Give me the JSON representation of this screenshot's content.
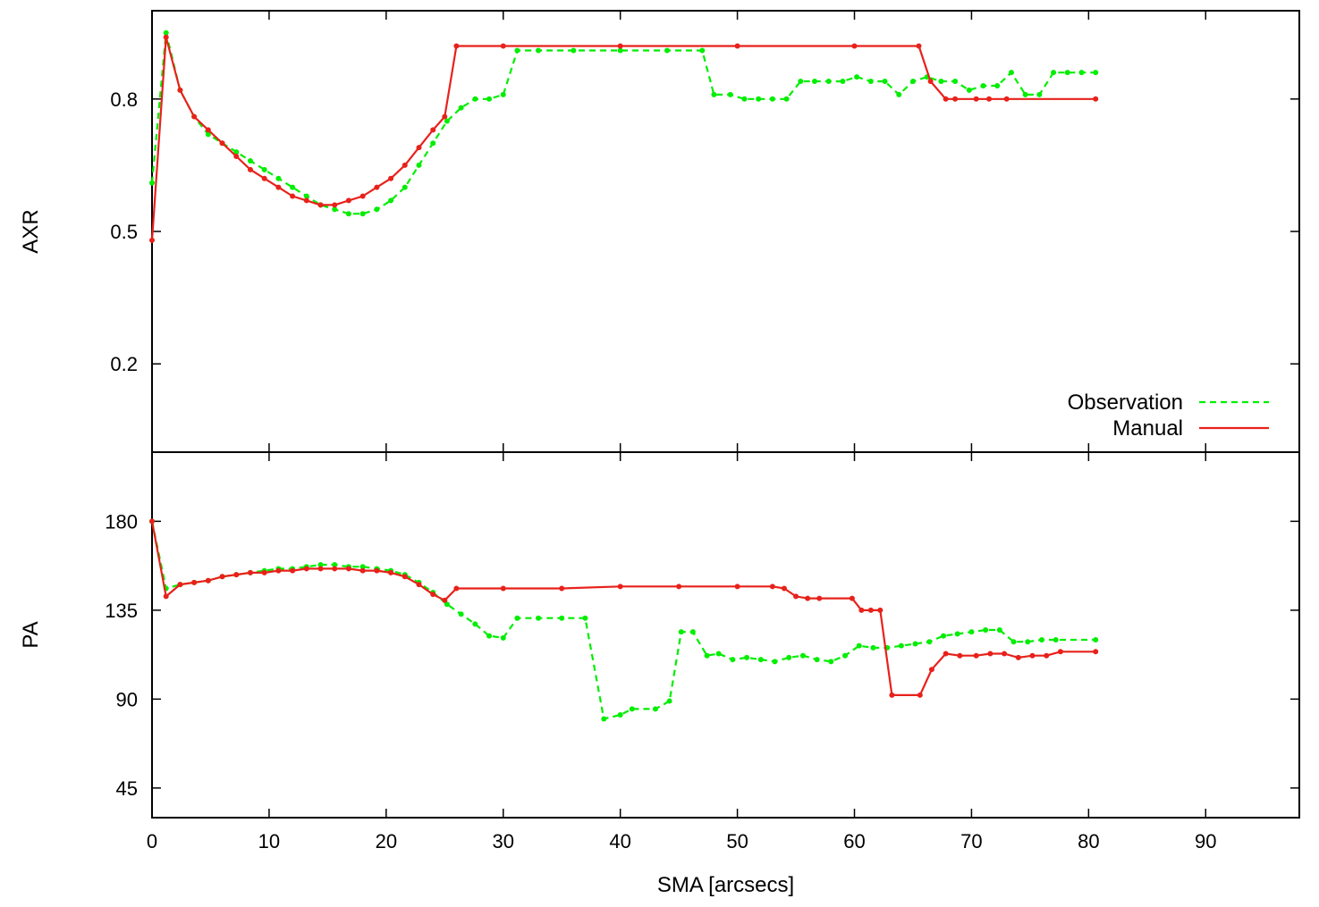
{
  "chart_data": [
    {
      "type": "line",
      "panel": "top",
      "ylabel": "AXR",
      "xlabel": "",
      "xlim": [
        0,
        98
      ],
      "ylim": [
        0,
        1.0
      ],
      "xticks": [
        0,
        10,
        20,
        30,
        40,
        50,
        60,
        70,
        80,
        90
      ],
      "yticks": [
        0.2,
        0.5,
        0.8
      ],
      "ytick_labels": [
        "0.2",
        "0.5",
        "0.8"
      ],
      "show_x_tick_labels": false,
      "legend": {
        "position": "bottom-right"
      },
      "series": [
        {
          "name": "Observation",
          "color": "#00ee00",
          "style": "dashed",
          "markers": true,
          "x": [
            0.0,
            1.2,
            2.4,
            3.6,
            4.8,
            6.0,
            7.2,
            8.4,
            9.6,
            10.8,
            12.0,
            13.2,
            14.4,
            15.6,
            16.8,
            18.0,
            19.2,
            20.4,
            21.6,
            22.8,
            24.0,
            25.2,
            26.4,
            27.6,
            28.8,
            30.0,
            31.2,
            33.0,
            36.0,
            40.0,
            44.0,
            47.0,
            48.0,
            49.4,
            50.6,
            51.8,
            53.0,
            54.2,
            55.4,
            56.6,
            57.8,
            59.0,
            60.2,
            61.4,
            62.6,
            63.8,
            65.0,
            66.2,
            67.4,
            68.6,
            69.8,
            71.0,
            72.2,
            73.4,
            74.6,
            75.8,
            77.0,
            78.2,
            79.4,
            80.6
          ],
          "y": [
            0.61,
            0.95,
            0.82,
            0.76,
            0.72,
            0.7,
            0.68,
            0.66,
            0.64,
            0.62,
            0.6,
            0.58,
            0.56,
            0.55,
            0.54,
            0.54,
            0.55,
            0.57,
            0.6,
            0.65,
            0.7,
            0.75,
            0.78,
            0.8,
            0.8,
            0.81,
            0.91,
            0.91,
            0.91,
            0.91,
            0.91,
            0.91,
            0.81,
            0.81,
            0.8,
            0.8,
            0.8,
            0.8,
            0.84,
            0.84,
            0.84,
            0.84,
            0.85,
            0.84,
            0.84,
            0.81,
            0.84,
            0.85,
            0.84,
            0.84,
            0.82,
            0.83,
            0.83,
            0.86,
            0.81,
            0.81,
            0.86,
            0.86,
            0.86,
            0.86
          ]
        },
        {
          "name": "Manual",
          "color": "#e8211b",
          "style": "solid",
          "markers": true,
          "x": [
            0.0,
            1.2,
            2.4,
            3.6,
            4.8,
            6.0,
            7.2,
            8.4,
            9.6,
            10.8,
            12.0,
            13.2,
            14.4,
            15.6,
            16.8,
            18.0,
            19.2,
            20.4,
            21.6,
            22.8,
            24.0,
            25.0,
            26.0,
            30.0,
            40.0,
            50.0,
            60.0,
            65.5,
            66.5,
            67.8,
            68.6,
            70.4,
            71.5,
            73.0,
            80.6
          ],
          "y": [
            0.48,
            0.94,
            0.82,
            0.76,
            0.73,
            0.7,
            0.67,
            0.64,
            0.62,
            0.6,
            0.58,
            0.57,
            0.56,
            0.56,
            0.57,
            0.58,
            0.6,
            0.62,
            0.65,
            0.69,
            0.73,
            0.76,
            0.92,
            0.92,
            0.92,
            0.92,
            0.92,
            0.92,
            0.84,
            0.8,
            0.8,
            0.8,
            0.8,
            0.8,
            0.8
          ]
        }
      ]
    },
    {
      "type": "line",
      "panel": "bottom",
      "ylabel": "PA",
      "xlabel": "SMA [arcsecs]",
      "xlim": [
        0,
        98
      ],
      "ylim": [
        30,
        215
      ],
      "xticks": [
        0,
        10,
        20,
        30,
        40,
        50,
        60,
        70,
        80,
        90
      ],
      "xtick_labels": [
        "0",
        "10",
        "20",
        "30",
        "40",
        "50",
        "60",
        "70",
        "80",
        "90"
      ],
      "yticks": [
        45,
        90,
        135,
        180
      ],
      "ytick_labels": [
        "45",
        "90",
        "135",
        "180"
      ],
      "series": [
        {
          "name": "Observation",
          "color": "#00ee00",
          "style": "dashed",
          "markers": true,
          "x": [
            0.0,
            1.2,
            2.4,
            3.6,
            4.8,
            6.0,
            7.2,
            8.4,
            9.6,
            10.8,
            12.0,
            13.2,
            14.4,
            15.6,
            16.8,
            18.0,
            19.2,
            20.4,
            21.6,
            22.8,
            24.0,
            25.2,
            26.4,
            27.6,
            28.8,
            30.0,
            31.2,
            33.0,
            35.0,
            37.0,
            38.6,
            40.0,
            41.0,
            43.0,
            44.2,
            45.2,
            46.2,
            47.4,
            48.4,
            49.6,
            50.8,
            52.0,
            53.2,
            54.4,
            55.6,
            56.8,
            58.0,
            59.2,
            60.4,
            61.6,
            62.8,
            64.0,
            65.2,
            66.4,
            67.6,
            68.8,
            70.0,
            71.2,
            72.4,
            73.6,
            74.8,
            76.0,
            77.2,
            80.6
          ],
          "y": [
            180,
            146,
            148,
            149,
            150,
            152,
            153,
            154,
            155,
            156,
            156,
            157,
            158,
            158,
            157,
            157,
            156,
            155,
            153,
            149,
            144,
            138,
            133,
            128,
            122,
            121,
            131,
            131,
            131,
            131,
            80,
            82,
            85,
            85,
            89,
            124,
            124,
            112,
            113,
            110,
            111,
            110,
            109,
            111,
            112,
            110,
            109,
            112,
            117,
            116,
            116,
            117,
            118,
            119,
            122,
            123,
            124,
            125,
            125,
            119,
            119,
            120,
            120,
            120
          ]
        },
        {
          "name": "Manual",
          "color": "#e8211b",
          "style": "solid",
          "markers": true,
          "x": [
            0.0,
            1.2,
            2.4,
            3.6,
            4.8,
            6.0,
            7.2,
            8.4,
            9.6,
            10.8,
            12.0,
            13.2,
            14.4,
            15.6,
            16.8,
            18.0,
            19.2,
            20.4,
            21.6,
            22.8,
            24.0,
            25.0,
            26.0,
            30.0,
            35.0,
            40.0,
            45.0,
            50.0,
            53.0,
            54.0,
            55.0,
            56.0,
            57.0,
            59.8,
            60.6,
            61.4,
            62.2,
            63.2,
            65.6,
            66.6,
            67.8,
            69.0,
            70.4,
            71.6,
            72.8,
            74.0,
            75.2,
            76.4,
            77.6,
            80.6
          ],
          "y": [
            180,
            142,
            148,
            149,
            150,
            152,
            153,
            154,
            154,
            155,
            155,
            156,
            156,
            156,
            156,
            155,
            155,
            154,
            152,
            148,
            143,
            140,
            146,
            146,
            146,
            147,
            147,
            147,
            147,
            146,
            142,
            141,
            141,
            141,
            135,
            135,
            135,
            92,
            92,
            105,
            113,
            112,
            112,
            113,
            113,
            111,
            112,
            112,
            114,
            114
          ]
        }
      ]
    }
  ]
}
